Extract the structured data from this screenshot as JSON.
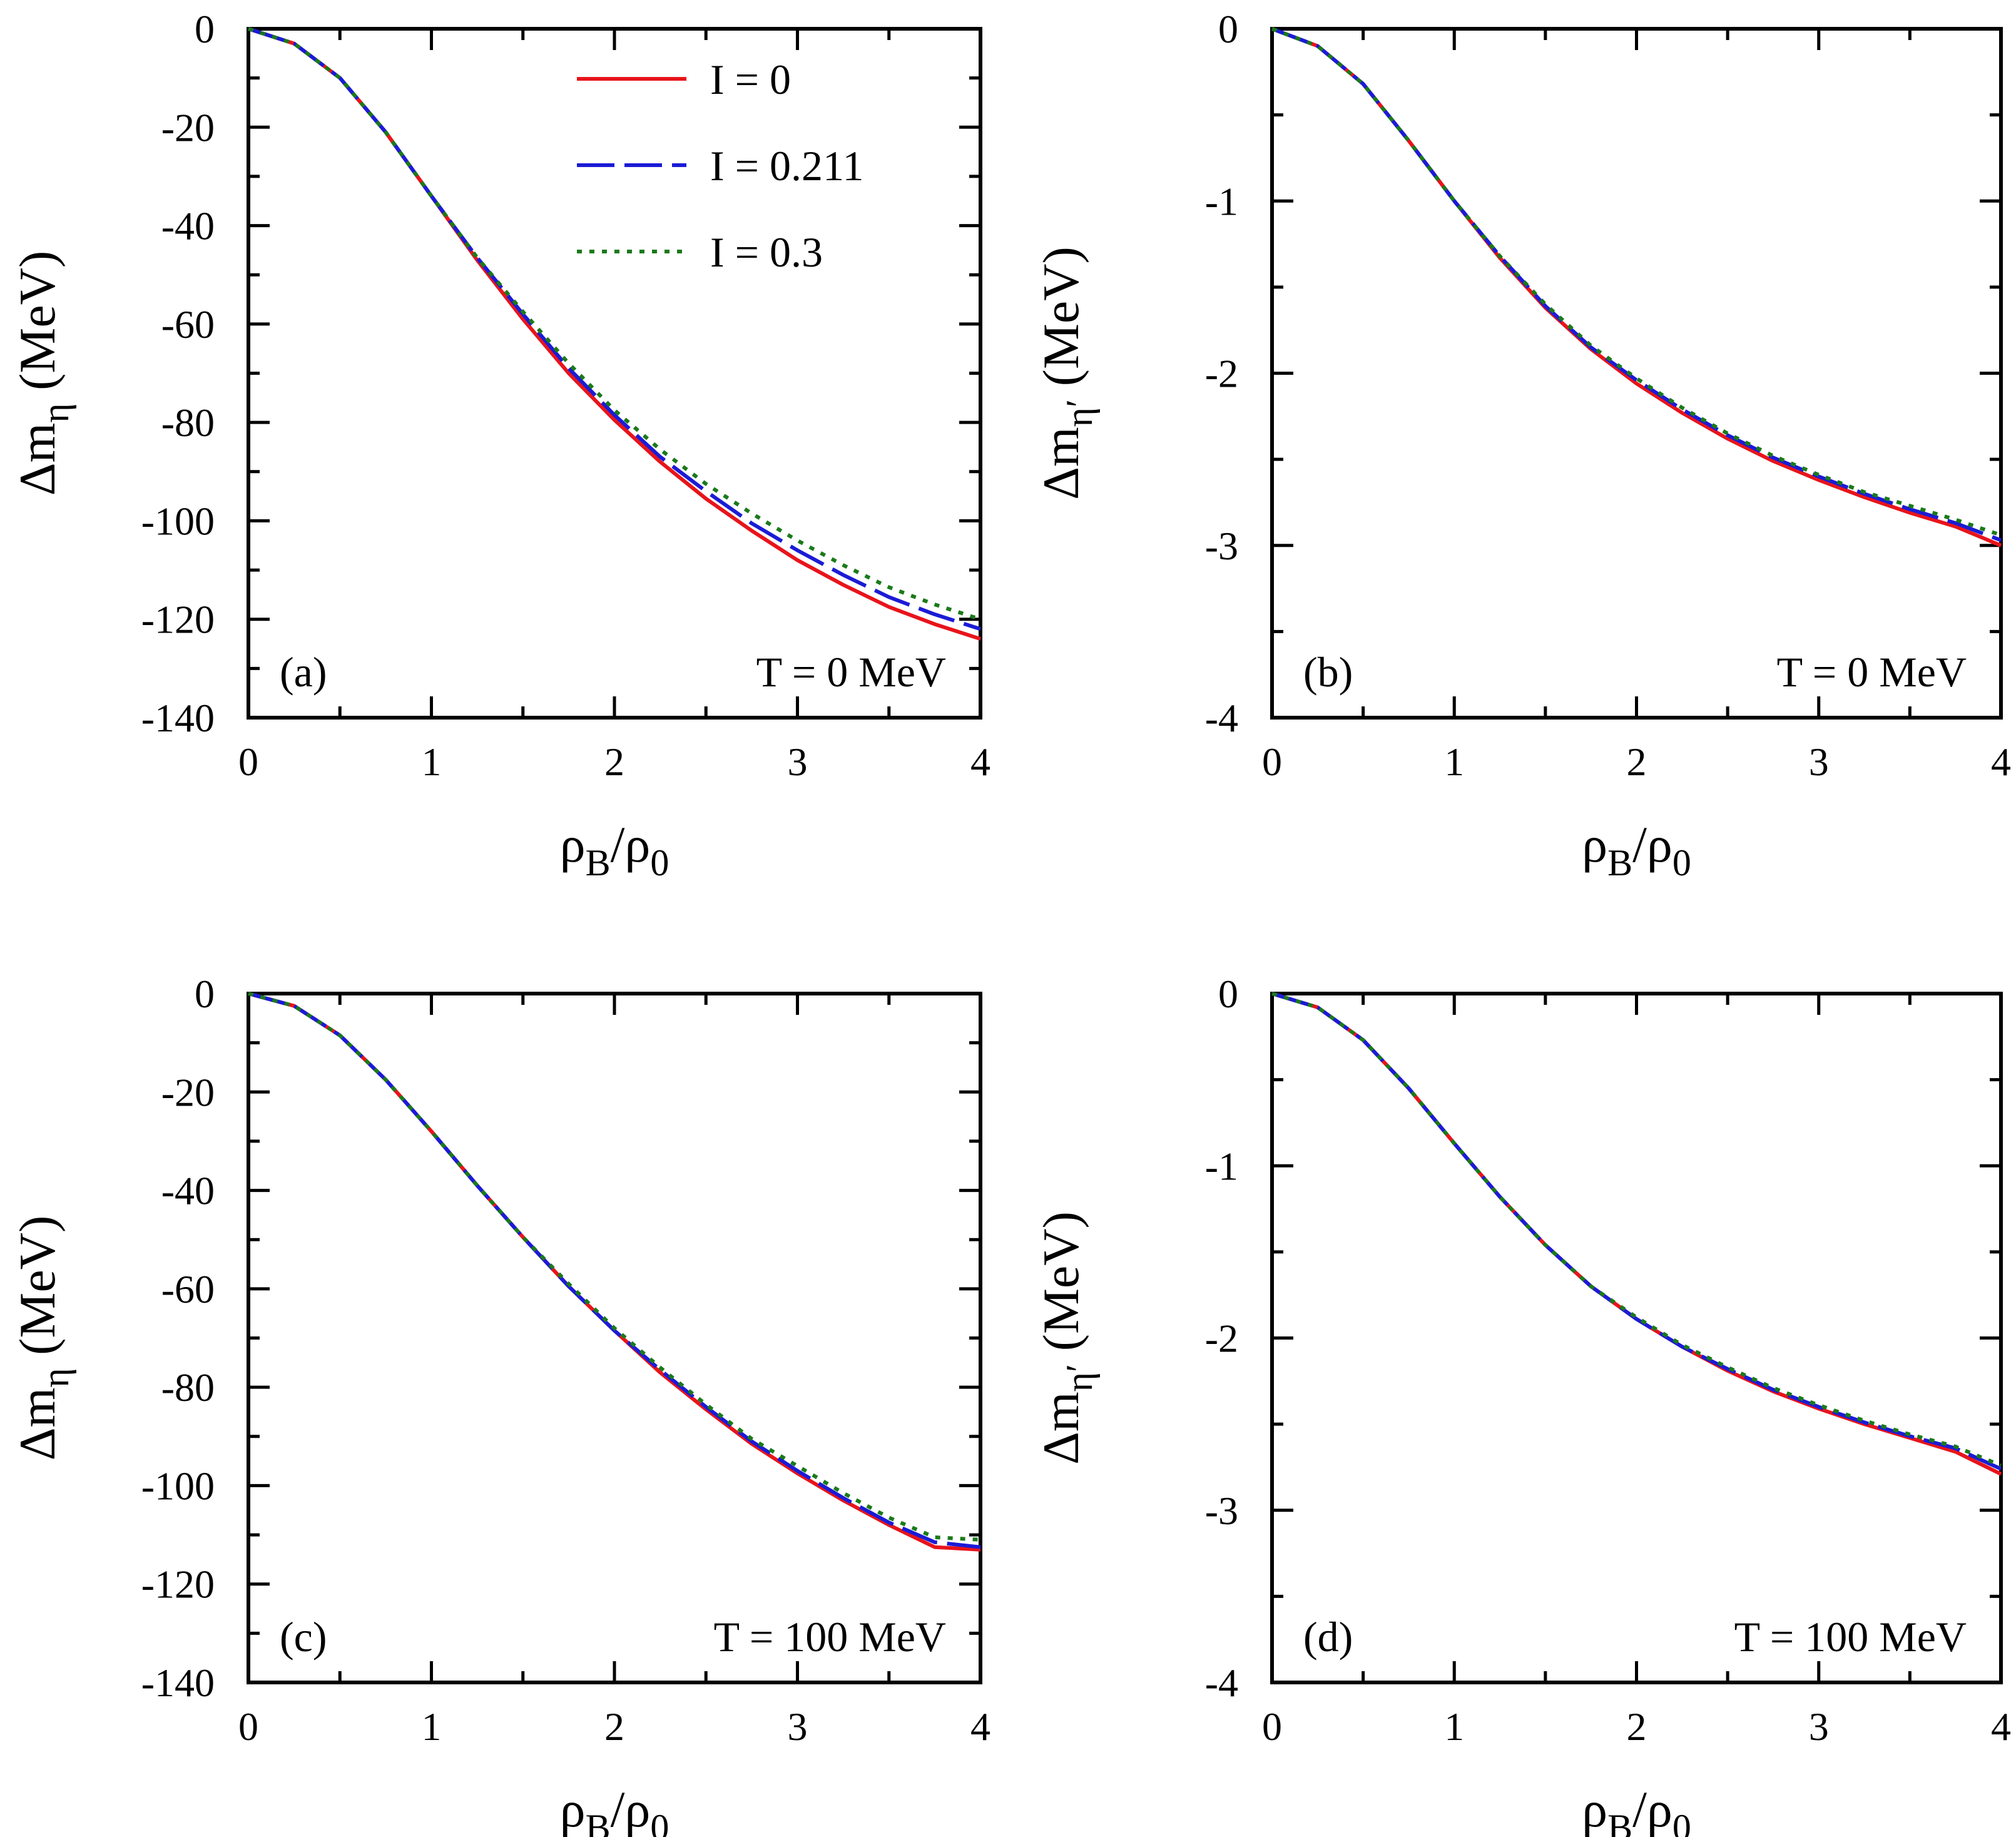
{
  "legend": [
    {
      "label": "I =  0",
      "color": "#e8141b",
      "dash": ""
    },
    {
      "label": "I =  0.211",
      "color": "#1b1bd6",
      "dash": "60,16"
    },
    {
      "label": "I =  0.3",
      "color": "#1a7a1a",
      "dash": "8,12"
    }
  ],
  "chart_data": [
    {
      "id": "a",
      "type": "line",
      "panel_label": "(a)",
      "annotation": "T = 0 MeV",
      "xlabel_main": "ρ",
      "xlabel_sub1": "B",
      "xlabel_mid": "/ρ",
      "xlabel_sub2": "0",
      "ylabel_main": "Δm",
      "ylabel_sub": "η",
      "ylabel_unit": "(MeV)",
      "xlim": [
        0,
        4
      ],
      "ylim": [
        -140,
        0
      ],
      "xticks": [
        0,
        1,
        2,
        3,
        4
      ],
      "yticks": [
        0,
        -20,
        -40,
        -60,
        -80,
        -100,
        -120,
        -140
      ],
      "x": [
        0,
        0.25,
        0.5,
        0.75,
        1.0,
        1.25,
        1.5,
        1.75,
        2.0,
        2.25,
        2.5,
        2.75,
        3.0,
        3.25,
        3.5,
        3.75,
        4.0
      ],
      "series": [
        {
          "name": "I =  0",
          "values": [
            0,
            -3,
            -10,
            -21,
            -34,
            -47,
            -59,
            -70,
            -79.5,
            -88,
            -95.5,
            -102,
            -108,
            -113,
            -117.5,
            -121,
            -124
          ]
        },
        {
          "name": "I =  0.211",
          "values": [
            0,
            -3,
            -10,
            -21,
            -34,
            -46.5,
            -58,
            -69,
            -78.5,
            -87,
            -94,
            -100.5,
            -106,
            -111,
            -115.5,
            -119,
            -122
          ]
        },
        {
          "name": "I =  0.3",
          "values": [
            0,
            -3,
            -10,
            -21,
            -34,
            -46.5,
            -57.5,
            -68,
            -77.5,
            -85.5,
            -92.5,
            -98.5,
            -104,
            -109,
            -113.5,
            -117,
            -120
          ]
        }
      ]
    },
    {
      "id": "b",
      "type": "line",
      "panel_label": "(b)",
      "annotation": "T = 0 MeV",
      "xlabel_main": "ρ",
      "xlabel_sub1": "B",
      "xlabel_mid": "/ρ",
      "xlabel_sub2": "0",
      "ylabel_main": "Δm",
      "ylabel_sub": "η′",
      "ylabel_unit": "(MeV)",
      "xlim": [
        0,
        4
      ],
      "ylim": [
        -4,
        0
      ],
      "xticks": [
        0,
        1,
        2,
        3,
        4
      ],
      "yticks": [
        0,
        -1,
        -2,
        -3,
        -4
      ],
      "x": [
        0,
        0.25,
        0.5,
        0.75,
        1.0,
        1.25,
        1.5,
        1.75,
        2.0,
        2.25,
        2.5,
        2.75,
        3.0,
        3.25,
        3.5,
        3.75,
        4.0
      ],
      "series": [
        {
          "name": "I =  0",
          "values": [
            0,
            -0.1,
            -0.32,
            -0.65,
            -1.0,
            -1.33,
            -1.62,
            -1.86,
            -2.06,
            -2.23,
            -2.38,
            -2.51,
            -2.62,
            -2.72,
            -2.81,
            -2.89,
            -3.0
          ]
        },
        {
          "name": "I =  0.211",
          "values": [
            0,
            -0.1,
            -0.32,
            -0.65,
            -1.0,
            -1.32,
            -1.61,
            -1.85,
            -2.04,
            -2.21,
            -2.36,
            -2.49,
            -2.6,
            -2.7,
            -2.79,
            -2.87,
            -2.97
          ]
        },
        {
          "name": "I =  0.3",
          "values": [
            0,
            -0.1,
            -0.32,
            -0.65,
            -1.0,
            -1.32,
            -1.6,
            -1.84,
            -2.03,
            -2.2,
            -2.35,
            -2.48,
            -2.59,
            -2.69,
            -2.77,
            -2.85,
            -2.94
          ]
        }
      ]
    },
    {
      "id": "c",
      "type": "line",
      "panel_label": "(c)",
      "annotation": "T = 100 MeV",
      "xlabel_main": "ρ",
      "xlabel_sub1": "B",
      "xlabel_mid": "/ρ",
      "xlabel_sub2": "0",
      "ylabel_main": "Δm",
      "ylabel_sub": "η",
      "ylabel_unit": "(MeV)",
      "xlim": [
        0,
        4
      ],
      "ylim": [
        -140,
        0
      ],
      "xticks": [
        0,
        1,
        2,
        3,
        4
      ],
      "yticks": [
        0,
        -20,
        -40,
        -60,
        -80,
        -100,
        -120,
        -140
      ],
      "x": [
        0,
        0.25,
        0.5,
        0.75,
        1.0,
        1.25,
        1.5,
        1.75,
        2.0,
        2.25,
        2.5,
        2.75,
        3.0,
        3.25,
        3.5,
        3.75,
        4.0
      ],
      "series": [
        {
          "name": "I =  0",
          "values": [
            0,
            -2.5,
            -8.5,
            -17.5,
            -28,
            -39,
            -49.5,
            -59.5,
            -68.5,
            -77,
            -84.5,
            -91.5,
            -97.5,
            -103,
            -108,
            -112.5,
            -113
          ]
        },
        {
          "name": "I =  0.211",
          "values": [
            0,
            -2.5,
            -8.5,
            -17.5,
            -28,
            -39,
            -49.5,
            -59.5,
            -68.5,
            -76.5,
            -84,
            -91,
            -97,
            -102.5,
            -107.5,
            -111.5,
            -112.5
          ]
        },
        {
          "name": "I =  0.3",
          "values": [
            0,
            -2.5,
            -8.5,
            -17.5,
            -28,
            -39,
            -49.5,
            -59,
            -68,
            -76,
            -83.5,
            -90.5,
            -96,
            -101.5,
            -106.5,
            -110.5,
            -111
          ]
        }
      ]
    },
    {
      "id": "d",
      "type": "line",
      "panel_label": "(d)",
      "annotation": "T = 100 MeV",
      "xlabel_main": "ρ",
      "xlabel_sub1": "B",
      "xlabel_mid": "/ρ",
      "xlabel_sub2": "0",
      "ylabel_main": "Δm",
      "ylabel_sub": "η′",
      "ylabel_unit": "(MeV)",
      "xlim": [
        0,
        4
      ],
      "ylim": [
        -4,
        0
      ],
      "xticks": [
        0,
        1,
        2,
        3,
        4
      ],
      "yticks": [
        0,
        -1,
        -2,
        -3,
        -4
      ],
      "x": [
        0,
        0.25,
        0.5,
        0.75,
        1.0,
        1.25,
        1.5,
        1.75,
        2.0,
        2.25,
        2.5,
        2.75,
        3.0,
        3.25,
        3.5,
        3.75,
        4.0
      ],
      "series": [
        {
          "name": "I =  0",
          "values": [
            0,
            -0.08,
            -0.27,
            -0.55,
            -0.87,
            -1.18,
            -1.46,
            -1.7,
            -1.89,
            -2.05,
            -2.19,
            -2.31,
            -2.41,
            -2.5,
            -2.58,
            -2.66,
            -2.79
          ]
        },
        {
          "name": "I =  0.211",
          "values": [
            0,
            -0.08,
            -0.27,
            -0.55,
            -0.87,
            -1.18,
            -1.46,
            -1.7,
            -1.89,
            -2.05,
            -2.18,
            -2.3,
            -2.4,
            -2.49,
            -2.57,
            -2.64,
            -2.76
          ]
        },
        {
          "name": "I =  0.3",
          "values": [
            0,
            -0.08,
            -0.27,
            -0.55,
            -0.87,
            -1.18,
            -1.46,
            -1.7,
            -1.88,
            -2.04,
            -2.17,
            -2.29,
            -2.39,
            -2.48,
            -2.56,
            -2.63,
            -2.74
          ]
        }
      ]
    }
  ]
}
